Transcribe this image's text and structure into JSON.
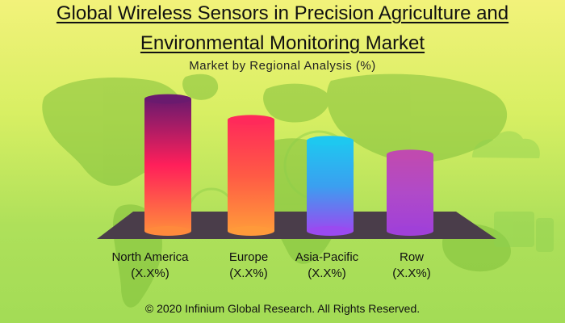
{
  "header": {
    "title_line1": "Global Wireless Sensors in Precision Agriculture and",
    "title_line2": "Environmental Monitoring Market",
    "subtitle": "Market by Regional Analysis (%)"
  },
  "footer": {
    "copyright": "© 2020 Infinium Global Research. All Rights Reserved."
  },
  "chart_data": {
    "type": "bar",
    "title": "Global Wireless Sensors in Precision Agriculture and Environmental Monitoring Market",
    "subtitle": "Market by Regional Analysis (%)",
    "categories": [
      "North America",
      "Europe",
      "Asia-Pacific",
      "Row"
    ],
    "values": [
      38,
      32,
      26,
      22
    ],
    "value_labels": [
      "(X.X%)",
      "(X.X%)",
      "(X.X%)",
      "(X.X%)"
    ],
    "ylim": [
      0,
      40
    ],
    "xlabel": "",
    "ylabel": "",
    "grid": false,
    "legend": "none",
    "bar_gradients": [
      [
        "#6a1a6e",
        "#ff1f5a",
        "#ff8a3c"
      ],
      [
        "#ff2a5a",
        "#ff5a45",
        "#ff9a3a"
      ],
      [
        "#1ec8f0",
        "#3aa0f0",
        "#9a4af0"
      ],
      [
        "#c04ab0",
        "#b04ac8",
        "#a040d8"
      ]
    ],
    "floor_color": "#4a3d4a"
  }
}
